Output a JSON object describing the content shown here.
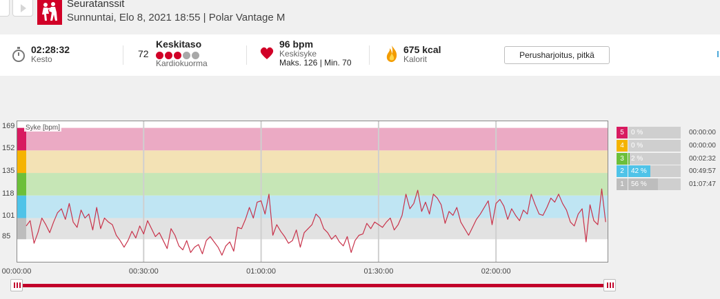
{
  "header": {
    "title": "Seuratanssit",
    "subtitle": "Sunnuntai, Elo 8, 2021 18:55 | Polar Vantage M"
  },
  "summary": {
    "duration_value": "02:28:32",
    "duration_label": "Kesto",
    "load_value": "72",
    "load_title": "Keskitaso",
    "load_label": "Kardiokuorma",
    "load_dots_filled": 3,
    "load_dots_total": 5,
    "hr_value": "96 bpm",
    "hr_label": "Keskisyke",
    "hr_range": "Maks. 126 | Min. 70",
    "cal_value": "675 kcal",
    "cal_label": "Kalorit",
    "training_button": "Perusharjoitus, pitkä"
  },
  "colors": {
    "brand": "#d10027",
    "line": "#c8324a",
    "zone5": "#d81b60",
    "zone4": "#f5b300",
    "zone3": "#6cbf3a",
    "zone2": "#4fc3e8",
    "zone1": "#bdbdbd"
  },
  "zones": [
    {
      "num": "5",
      "pct": "0 %",
      "time": "00:00:00",
      "fraction": 0.0
    },
    {
      "num": "4",
      "pct": "0 %",
      "time": "00:00:00",
      "fraction": 0.0
    },
    {
      "num": "3",
      "pct": "2 %",
      "time": "00:02:32",
      "fraction": 0.02
    },
    {
      "num": "2",
      "pct": "42 %",
      "time": "00:49:57",
      "fraction": 0.42
    },
    {
      "num": "1",
      "pct": "56 %",
      "time": "01:07:47",
      "fraction": 0.56
    }
  ],
  "chart_data": {
    "type": "line",
    "title": "",
    "ylabel": "Syke [bpm]",
    "xlabel": "",
    "ylim": [
      68,
      174
    ],
    "y_ticks": [
      169,
      152,
      135,
      118,
      101,
      85
    ],
    "x_ticks": [
      "00:00:00",
      "00:30:00",
      "01:00:00",
      "01:30:00",
      "02:00:00"
    ],
    "x_unit": "minutes",
    "x_tick_values": [
      0,
      30,
      60,
      90,
      120
    ],
    "xlim": [
      0,
      148.5
    ],
    "zone_bands": [
      {
        "zone": 1,
        "from": 85,
        "to": 101
      },
      {
        "zone": 2,
        "from": 101,
        "to": 118
      },
      {
        "zone": 3,
        "from": 118,
        "to": 135
      },
      {
        "zone": 4,
        "from": 135,
        "to": 152
      },
      {
        "zone": 5,
        "from": 152,
        "to": 169
      }
    ],
    "series": [
      {
        "x": [
          0,
          1,
          2,
          3,
          4,
          5,
          6,
          7,
          8,
          9,
          10,
          11,
          12,
          13,
          14,
          15,
          16,
          17,
          18,
          19,
          20,
          21,
          22,
          23,
          24,
          25,
          26,
          27,
          28,
          29,
          30,
          31,
          32,
          33,
          34,
          35,
          36,
          37,
          38,
          39,
          40,
          41,
          42,
          43,
          44,
          45,
          46,
          47,
          48,
          49,
          50,
          51,
          52,
          53,
          54,
          55,
          56,
          57,
          58,
          59,
          60,
          61,
          62,
          63,
          64,
          65,
          66,
          67,
          68,
          69,
          70,
          71,
          72,
          73,
          74,
          75,
          76,
          77,
          78,
          79,
          80,
          81,
          82,
          83,
          84,
          85,
          86,
          87,
          88,
          89,
          90,
          91,
          92,
          93,
          94,
          95,
          96,
          97,
          98,
          99,
          100,
          101,
          102,
          103,
          104,
          105,
          106,
          107,
          108,
          109,
          110,
          111,
          112,
          113,
          114,
          115,
          116,
          117,
          118,
          119,
          120,
          121,
          122,
          123,
          124,
          125,
          126,
          127,
          128,
          129,
          130,
          131,
          132,
          133,
          134,
          135,
          136,
          137,
          138,
          139,
          140,
          141,
          142,
          143,
          144,
          145,
          146,
          147,
          148
        ],
        "values": [
          95,
          99,
          82,
          90,
          101,
          96,
          90,
          98,
          105,
          108,
          100,
          112,
          98,
          94,
          107,
          101,
          104,
          92,
          109,
          93,
          101,
          98,
          96,
          88,
          84,
          79,
          84,
          91,
          86,
          95,
          89,
          99,
          93,
          87,
          90,
          84,
          78,
          93,
          88,
          80,
          77,
          84,
          75,
          79,
          81,
          74,
          84,
          87,
          83,
          79,
          73,
          80,
          83,
          76,
          94,
          93,
          100,
          109,
          101,
          113,
          114,
          104,
          119,
          88,
          96,
          91,
          87,
          82,
          84,
          92,
          79,
          90,
          93,
          96,
          104,
          101,
          93,
          90,
          85,
          88,
          83,
          80,
          87,
          75,
          84,
          88,
          89,
          97,
          93,
          98,
          96,
          94,
          98,
          101,
          92,
          96,
          103,
          119,
          108,
          112,
          122,
          106,
          113,
          104,
          119,
          116,
          111,
          97,
          106,
          103,
          109,
          98,
          93,
          88,
          94,
          100,
          104,
          109,
          114,
          96,
          112,
          115,
          110,
          100,
          108,
          103,
          99,
          107,
          104,
          119,
          111,
          104,
          103,
          109,
          116,
          113,
          119,
          112,
          107,
          98,
          95,
          104,
          108,
          83,
          111,
          99,
          96,
          123,
          98
        ]
      }
    ]
  }
}
